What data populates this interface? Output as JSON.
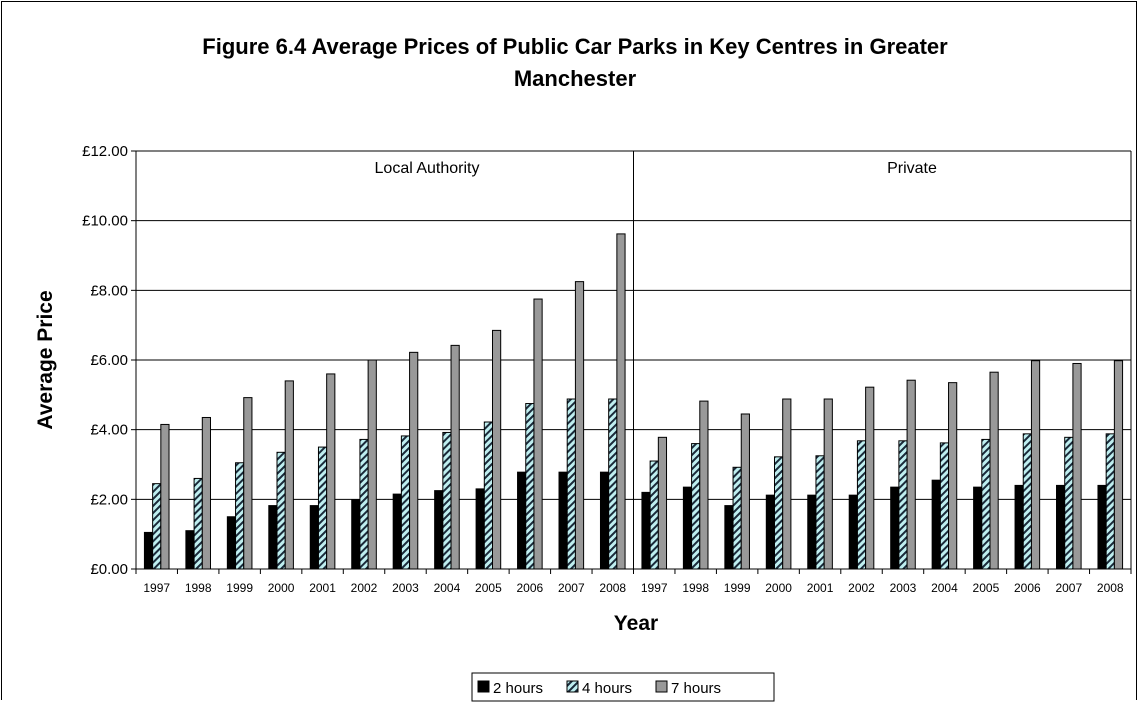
{
  "chart_data": {
    "type": "bar",
    "title": "Figure 6.4 Average Prices of Public Car Parks in Key Centres in Greater Manchester",
    "title_lines": [
      "Figure 6.4 Average Prices of Public Car Parks in Key Centres in Greater",
      "Manchester"
    ],
    "xlabel": "Year",
    "ylabel": "Average Price",
    "ylim": [
      0,
      12
    ],
    "yticks": [
      "£0.00",
      "£2.00",
      "£4.00",
      "£6.00",
      "£8.00",
      "£10.00",
      "£12.00"
    ],
    "grid": "horizontal",
    "legend_position": "bottom",
    "colors": {
      "2 hours": "#000000",
      "4 hours": "#bfeff0",
      "7 hours": "#999999"
    },
    "panels": [
      {
        "name": "Local Authority",
        "categories": [
          "1997",
          "1998",
          "1999",
          "2000",
          "2001",
          "2002",
          "2003",
          "2004",
          "2005",
          "2006",
          "2007",
          "2008"
        ],
        "series": [
          {
            "name": "2 hours",
            "values": [
              1.05,
              1.1,
              1.5,
              1.82,
              1.82,
              1.98,
              2.15,
              2.25,
              2.3,
              2.78,
              2.78,
              2.78
            ]
          },
          {
            "name": "4 hours",
            "values": [
              2.45,
              2.6,
              3.05,
              3.35,
              3.5,
              3.72,
              3.82,
              3.92,
              4.22,
              4.75,
              4.88,
              4.88
            ]
          },
          {
            "name": "7 hours",
            "values": [
              4.15,
              4.35,
              4.92,
              5.4,
              5.6,
              6.0,
              6.22,
              6.42,
              6.85,
              7.75,
              8.25,
              9.62
            ]
          }
        ]
      },
      {
        "name": "Private",
        "categories": [
          "1997",
          "1998",
          "1999",
          "2000",
          "2001",
          "2002",
          "2003",
          "2004",
          "2005",
          "2006",
          "2007",
          "2008"
        ],
        "series": [
          {
            "name": "2 hours",
            "values": [
              2.2,
              2.35,
              1.82,
              2.12,
              2.12,
              2.12,
              2.35,
              2.55,
              2.35,
              2.4,
              2.4,
              2.4
            ]
          },
          {
            "name": "4 hours",
            "values": [
              3.1,
              3.6,
              2.92,
              3.22,
              3.25,
              3.68,
              3.68,
              3.62,
              3.72,
              3.88,
              3.78,
              3.88
            ]
          },
          {
            "name": "7 hours",
            "values": [
              3.78,
              4.82,
              4.45,
              4.88,
              4.88,
              5.22,
              5.42,
              5.35,
              5.65,
              5.98,
              5.9,
              5.98
            ]
          }
        ]
      }
    ],
    "legend": [
      "2 hours",
      "4 hours",
      "7 hours"
    ]
  }
}
